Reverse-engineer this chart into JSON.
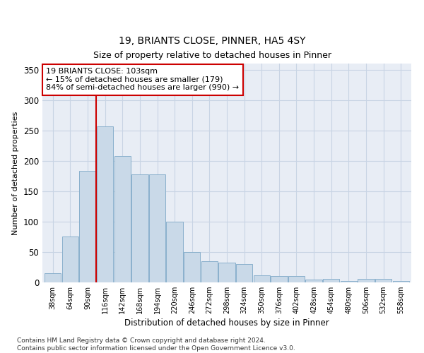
{
  "title": "19, BRIANTS CLOSE, PINNER, HA5 4SY",
  "subtitle": "Size of property relative to detached houses in Pinner",
  "xlabel": "Distribution of detached houses by size in Pinner",
  "ylabel": "Number of detached properties",
  "categories": [
    "38sqm",
    "64sqm",
    "90sqm",
    "116sqm",
    "142sqm",
    "168sqm",
    "194sqm",
    "220sqm",
    "246sqm",
    "272sqm",
    "298sqm",
    "324sqm",
    "350sqm",
    "376sqm",
    "402sqm",
    "428sqm",
    "454sqm",
    "480sqm",
    "506sqm",
    "532sqm",
    "558sqm"
  ],
  "values": [
    15,
    75,
    184,
    257,
    208,
    178,
    178,
    100,
    50,
    35,
    32,
    30,
    12,
    10,
    10,
    5,
    6,
    2,
    6,
    6,
    2
  ],
  "bar_color": "#c9d9e8",
  "bar_edge_color": "#8ab0cc",
  "grid_color": "#c8d4e4",
  "background_color": "#e8edf5",
  "property_line_x": 2.5,
  "annotation_text": "19 BRIANTS CLOSE: 103sqm\n← 15% of detached houses are smaller (179)\n84% of semi-detached houses are larger (990) →",
  "annotation_box_color": "#ffffff",
  "annotation_box_edge": "#cc0000",
  "annotation_text_color": "#000000",
  "property_line_color": "#cc0000",
  "ylim": [
    0,
    360
  ],
  "yticks": [
    0,
    50,
    100,
    150,
    200,
    250,
    300,
    350
  ],
  "footer_line1": "Contains HM Land Registry data © Crown copyright and database right 2024.",
  "footer_line2": "Contains public sector information licensed under the Open Government Licence v3.0."
}
